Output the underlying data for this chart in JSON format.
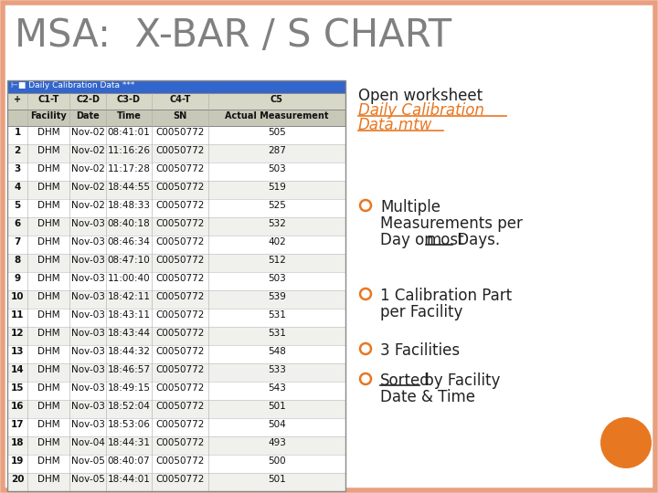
{
  "title": "MSA:  X-BAR / S CHART",
  "title_color": "#808080",
  "bg_color": "#FFFFFF",
  "border_color": "#E8A080",
  "table_title": "Daily Calibration Data ***",
  "table_header_bg": "#3366CC",
  "table_col_header": [
    "+",
    "C1-T",
    "C2-D",
    "C3-D",
    "C4-T",
    "C5"
  ],
  "table_col_subheader": [
    "",
    "Facility",
    "Date",
    "Time",
    "SN",
    "Actual Measurement"
  ],
  "table_rows": [
    [
      "1",
      "DHM",
      "Nov-02",
      "08:41:01",
      "C0050772",
      "505"
    ],
    [
      "2",
      "DHM",
      "Nov-02",
      "11:16:26",
      "C0050772",
      "287"
    ],
    [
      "3",
      "DHM",
      "Nov-02",
      "11:17:28",
      "C0050772",
      "503"
    ],
    [
      "4",
      "DHM",
      "Nov-02",
      "18:44:55",
      "C0050772",
      "519"
    ],
    [
      "5",
      "DHM",
      "Nov-02",
      "18:48:33",
      "C0050772",
      "525"
    ],
    [
      "6",
      "DHM",
      "Nov-03",
      "08:40:18",
      "C0050772",
      "532"
    ],
    [
      "7",
      "DHM",
      "Nov-03",
      "08:46:34",
      "C0050772",
      "402"
    ],
    [
      "8",
      "DHM",
      "Nov-03",
      "08:47:10",
      "C0050772",
      "512"
    ],
    [
      "9",
      "DHM",
      "Nov-03",
      "11:00:40",
      "C0050772",
      "503"
    ],
    [
      "10",
      "DHM",
      "Nov-03",
      "18:42:11",
      "C0050772",
      "539"
    ],
    [
      "11",
      "DHM",
      "Nov-03",
      "18:43:11",
      "C0050772",
      "531"
    ],
    [
      "12",
      "DHM",
      "Nov-03",
      "18:43:44",
      "C0050772",
      "531"
    ],
    [
      "13",
      "DHM",
      "Nov-03",
      "18:44:32",
      "C0050772",
      "548"
    ],
    [
      "14",
      "DHM",
      "Nov-03",
      "18:46:57",
      "C0050772",
      "533"
    ],
    [
      "15",
      "DHM",
      "Nov-03",
      "18:49:15",
      "C0050772",
      "543"
    ],
    [
      "16",
      "DHM",
      "Nov-03",
      "18:52:04",
      "C0050772",
      "501"
    ],
    [
      "17",
      "DHM",
      "Nov-03",
      "18:53:06",
      "C0050772",
      "504"
    ],
    [
      "18",
      "DHM",
      "Nov-04",
      "18:44:31",
      "C0050772",
      "493"
    ],
    [
      "19",
      "DHM",
      "Nov-05",
      "08:40:07",
      "C0050772",
      "500"
    ],
    [
      "20",
      "DHM",
      "Nov-05",
      "18:44:01",
      "C0050772",
      "501"
    ]
  ],
  "open_worksheet_text": "Open worksheet",
  "link_line1": "Daily Calibration",
  "link_line2": "Data.mtw",
  "bullets": [
    [
      "Multiple",
      "Measurements per",
      "Day on most Days."
    ],
    [
      "1 Calibration Part",
      "per Facility"
    ],
    [
      "3 Facilities"
    ],
    [
      "Sorted by Facility",
      "Date & Time"
    ]
  ],
  "bullet_color": "#E87722",
  "link_color": "#E87722",
  "text_color": "#222222",
  "orange_circle_color": "#E87722",
  "slide_bg": "#FFFFFF"
}
